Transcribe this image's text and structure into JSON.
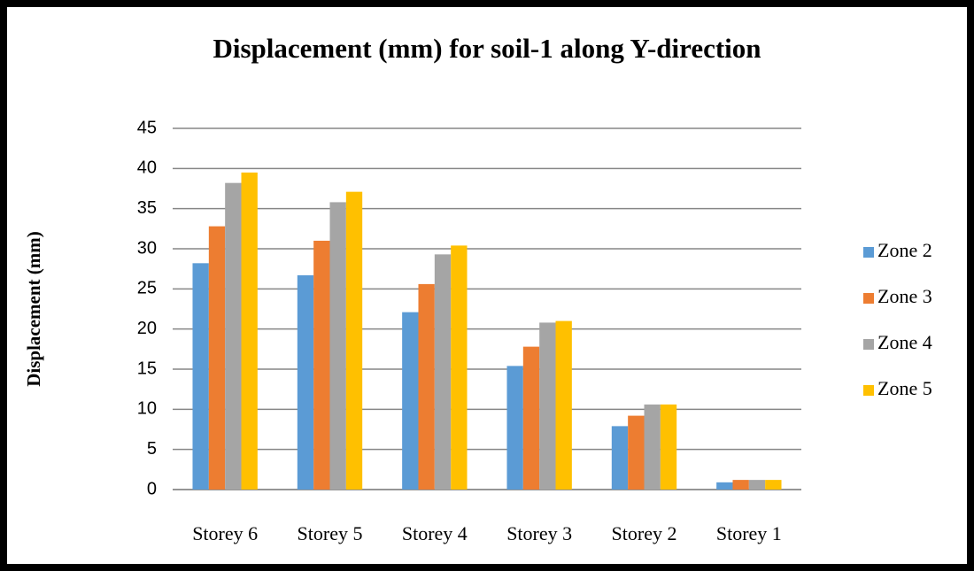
{
  "chart_data": {
    "type": "bar",
    "title": "Displacement (mm)  for soil-1  along Y-direction",
    "y_label": "Displacement (mm)",
    "categories": [
      "Storey 6",
      "Storey 5",
      "Storey 4",
      "Storey 3",
      "Storey 2",
      "Storey 1"
    ],
    "series": [
      {
        "name": "Zone 2",
        "color": "#5b9bd5",
        "values": [
          28.2,
          26.7,
          22.1,
          15.4,
          7.9,
          0.9
        ]
      },
      {
        "name": "Zone 3",
        "color": "#ed7d31",
        "values": [
          32.8,
          31.0,
          25.6,
          17.8,
          9.2,
          1.2
        ]
      },
      {
        "name": "Zone 4",
        "color": "#a5a5a5",
        "values": [
          38.2,
          35.8,
          29.3,
          20.8,
          10.6,
          1.2
        ]
      },
      {
        "name": "Zone 5",
        "color": "#ffc000",
        "values": [
          39.5,
          37.1,
          30.4,
          21.0,
          10.6,
          1.2
        ]
      }
    ],
    "ylim": [
      0,
      45
    ],
    "yticks": [
      0,
      5,
      10,
      15,
      20,
      25,
      30,
      35,
      40,
      45
    ],
    "grid": true,
    "legend": "right"
  }
}
